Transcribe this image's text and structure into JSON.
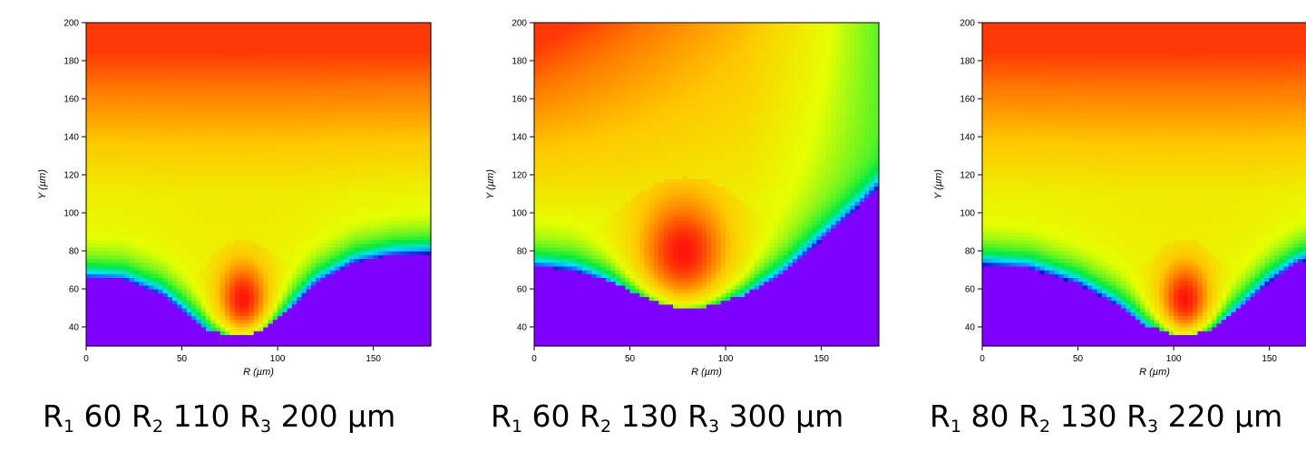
{
  "chart_data": [
    {
      "type": "heatmap",
      "xlabel": "R (µm)",
      "ylabel": "Y (µm)",
      "xlim": [
        0,
        180
      ],
      "ylim": [
        30,
        200
      ],
      "xticks": [
        0,
        50,
        100,
        150
      ],
      "yticks": [
        40,
        60,
        80,
        100,
        120,
        140,
        160,
        180,
        200
      ],
      "caption": {
        "r1_label": "R",
        "r1_sub": "1",
        "r1_value": "60",
        "r2_label": "R",
        "r2_sub": "2",
        "r2_value": "110",
        "r3_label": "R",
        "r3_sub": "3",
        "r3_value": "200 µm"
      },
      "boundary": [
        [
          0,
          66
        ],
        [
          20,
          65
        ],
        [
          40,
          57
        ],
        [
          55,
          45
        ],
        [
          65,
          38
        ],
        [
          80,
          35
        ],
        [
          92,
          38
        ],
        [
          105,
          48
        ],
        [
          120,
          63
        ],
        [
          140,
          74
        ],
        [
          160,
          78
        ],
        [
          180,
          79
        ]
      ],
      "hotspot": {
        "x": 82,
        "y": 55
      }
    },
    {
      "type": "heatmap",
      "xlabel": "R (µm)",
      "ylabel": "Y (µm)",
      "xlim": [
        0,
        180
      ],
      "ylim": [
        30,
        200
      ],
      "xticks": [
        0,
        50,
        100,
        150
      ],
      "yticks": [
        40,
        60,
        80,
        100,
        120,
        140,
        160,
        180,
        200
      ],
      "caption": {
        "r1_label": "R",
        "r1_sub": "1",
        "r1_value": "60",
        "r2_label": "R",
        "r2_sub": "2",
        "r2_value": "130",
        "r3_label": "R",
        "r3_sub": "3",
        "r3_value": "300 µm"
      },
      "boundary": [
        [
          0,
          72
        ],
        [
          20,
          70
        ],
        [
          40,
          64
        ],
        [
          60,
          55
        ],
        [
          75,
          50
        ],
        [
          90,
          51
        ],
        [
          110,
          57
        ],
        [
          130,
          68
        ],
        [
          150,
          86
        ],
        [
          170,
          104
        ],
        [
          180,
          114
        ]
      ],
      "hotspot": {
        "x": 78,
        "y": 80
      }
    },
    {
      "type": "heatmap",
      "xlabel": "R (µm)",
      "ylabel": "Y (µm)",
      "xlim": [
        0,
        180
      ],
      "ylim": [
        30,
        200
      ],
      "xticks": [
        0,
        50,
        100,
        150
      ],
      "yticks": [
        40,
        60,
        80,
        100,
        120,
        140,
        160,
        180,
        200
      ],
      "caption": {
        "r1_label": "R",
        "r1_sub": "1",
        "r1_value": "80",
        "r2_label": "R",
        "r2_sub": "2",
        "r2_value": "130",
        "r3_label": "R",
        "r3_sub": "3",
        "r3_value": "220 µm"
      },
      "boundary": [
        [
          0,
          73
        ],
        [
          25,
          71
        ],
        [
          50,
          63
        ],
        [
          70,
          52
        ],
        [
          85,
          41
        ],
        [
          105,
          35
        ],
        [
          120,
          39
        ],
        [
          135,
          50
        ],
        [
          150,
          64
        ],
        [
          165,
          74
        ],
        [
          180,
          78
        ]
      ],
      "hotspot": {
        "x": 106,
        "y": 55
      }
    }
  ]
}
